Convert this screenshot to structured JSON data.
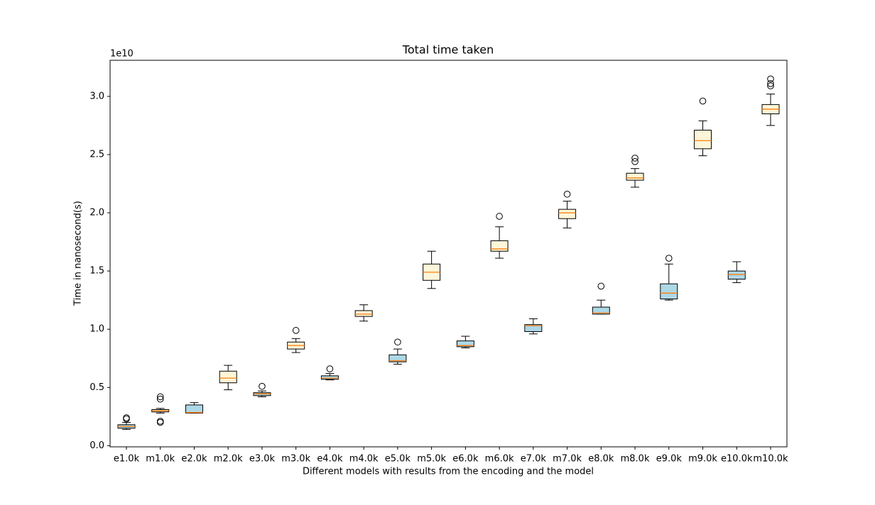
{
  "chart_data": {
    "type": "box",
    "title": "Total time taken",
    "x_label": "Different models with results from the encoding and the model",
    "y_label": "Time in nanosecond(s)",
    "y_offset_label": "1e10",
    "categories": [
      "e1.0k",
      "m1.0k",
      "e2.0k",
      "m2.0k",
      "e3.0k",
      "m3.0k",
      "e4.0k",
      "m4.0k",
      "e5.0k",
      "m5.0k",
      "e6.0k",
      "m6.0k",
      "e7.0k",
      "m7.0k",
      "e8.0k",
      "m8.0k",
      "e9.0k",
      "m9.0k",
      "e10.0k",
      "m10.0k"
    ],
    "boxes": [
      {
        "low": 0.14,
        "q1": 0.15,
        "median": 0.165,
        "q3": 0.18,
        "high": 0.2,
        "outliers": [
          0.23,
          0.24
        ],
        "color": "#add8e6"
      },
      {
        "low": 0.28,
        "q1": 0.29,
        "median": 0.3,
        "q3": 0.31,
        "high": 0.32,
        "outliers": [
          0.42,
          0.4,
          0.21,
          0.2
        ],
        "color": "#fdf6d8"
      },
      {
        "low": 0.28,
        "q1": 0.28,
        "median": 0.285,
        "q3": 0.35,
        "high": 0.37,
        "outliers": [],
        "color": "#add8e6"
      },
      {
        "low": 0.48,
        "q1": 0.54,
        "median": 0.58,
        "q3": 0.64,
        "high": 0.69,
        "outliers": [],
        "color": "#fdf6d8"
      },
      {
        "low": 0.42,
        "q1": 0.43,
        "median": 0.445,
        "q3": 0.455,
        "high": 0.47,
        "outliers": [
          0.51
        ],
        "color": "#add8e6"
      },
      {
        "low": 0.8,
        "q1": 0.83,
        "median": 0.86,
        "q3": 0.89,
        "high": 0.92,
        "outliers": [
          0.99
        ],
        "color": "#fdf6d8"
      },
      {
        "low": 0.565,
        "q1": 0.57,
        "median": 0.58,
        "q3": 0.6,
        "high": 0.62,
        "outliers": [
          0.66
        ],
        "color": "#add8e6"
      },
      {
        "low": 1.07,
        "q1": 1.11,
        "median": 1.13,
        "q3": 1.16,
        "high": 1.21,
        "outliers": [],
        "color": "#fdf6d8"
      },
      {
        "low": 0.7,
        "q1": 0.72,
        "median": 0.73,
        "q3": 0.78,
        "high": 0.83,
        "outliers": [
          0.89
        ],
        "color": "#add8e6"
      },
      {
        "low": 1.35,
        "q1": 1.42,
        "median": 1.49,
        "q3": 1.56,
        "high": 1.67,
        "outliers": [],
        "color": "#fdf6d8"
      },
      {
        "low": 0.84,
        "q1": 0.85,
        "median": 0.86,
        "q3": 0.9,
        "high": 0.94,
        "outliers": [],
        "color": "#add8e6"
      },
      {
        "low": 1.61,
        "q1": 1.67,
        "median": 1.69,
        "q3": 1.76,
        "high": 1.88,
        "outliers": [
          1.97
        ],
        "color": "#fdf6d8"
      },
      {
        "low": 0.96,
        "q1": 0.98,
        "median": 1.03,
        "q3": 1.04,
        "high": 1.09,
        "outliers": [],
        "color": "#add8e6"
      },
      {
        "low": 1.87,
        "q1": 1.95,
        "median": 2.0,
        "q3": 2.03,
        "high": 2.1,
        "outliers": [
          2.16
        ],
        "color": "#fdf6d8"
      },
      {
        "low": 1.13,
        "q1": 1.13,
        "median": 1.14,
        "q3": 1.19,
        "high": 1.25,
        "outliers": [
          1.37
        ],
        "color": "#add8e6"
      },
      {
        "low": 2.22,
        "q1": 2.28,
        "median": 2.3,
        "q3": 2.34,
        "high": 2.38,
        "outliers": [
          2.44,
          2.47
        ],
        "color": "#fdf6d8"
      },
      {
        "low": 1.25,
        "q1": 1.26,
        "median": 1.31,
        "q3": 1.39,
        "high": 1.56,
        "outliers": [
          1.61
        ],
        "color": "#add8e6"
      },
      {
        "low": 2.49,
        "q1": 2.55,
        "median": 2.62,
        "q3": 2.71,
        "high": 2.79,
        "outliers": [
          2.96
        ],
        "color": "#fdf6d8"
      },
      {
        "low": 1.4,
        "q1": 1.43,
        "median": 1.47,
        "q3": 1.5,
        "high": 1.58,
        "outliers": [],
        "color": "#add8e6"
      },
      {
        "low": 2.75,
        "q1": 2.85,
        "median": 2.89,
        "q3": 2.93,
        "high": 3.02,
        "outliers": [
          3.09,
          3.11,
          3.15
        ],
        "color": "#fdf6d8"
      }
    ],
    "median_color": "#ff7f0e",
    "ylim": [
      -0.01,
      3.31
    ],
    "yticks": [
      {
        "value": 0,
        "label": "0.0"
      },
      {
        "value": 0.5,
        "label": "0.5"
      },
      {
        "value": 1,
        "label": "1.0"
      },
      {
        "value": 1.5,
        "label": "1.5"
      },
      {
        "value": 2,
        "label": "2.0"
      },
      {
        "value": 2.5,
        "label": "2.5"
      },
      {
        "value": 3,
        "label": "3.0"
      }
    ],
    "grid": false
  }
}
